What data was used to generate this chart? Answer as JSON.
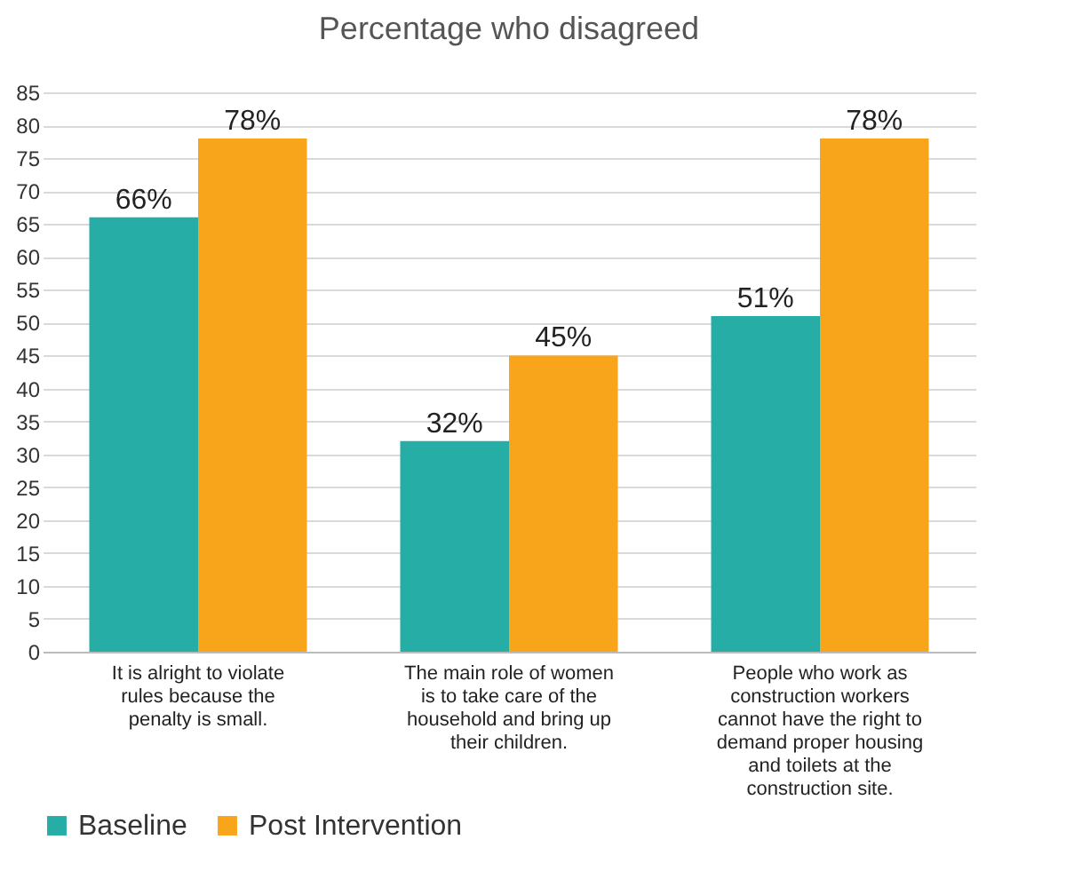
{
  "chart_data": {
    "type": "bar",
    "title": "Percentage who disagreed",
    "categories": [
      "It is alright to violate rules because the penalty is small.",
      "The main role of women is to take care of the household and bring up their children.",
      "People who work as construction workers cannot have the right to demand proper housing and toilets at the construction site."
    ],
    "series": [
      {
        "name": "Baseline",
        "color": "#26ada6",
        "values": [
          66,
          32,
          51
        ],
        "value_labels": [
          "66%",
          "32%",
          "51%"
        ]
      },
      {
        "name": "Post Intervention",
        "color": "#f8a51c",
        "values": [
          78,
          45,
          78
        ],
        "value_labels": [
          "78%",
          "45%",
          "78%"
        ]
      }
    ],
    "ylim": [
      0,
      85
    ],
    "yticks": [
      0,
      5,
      10,
      15,
      20,
      25,
      30,
      35,
      40,
      45,
      50,
      55,
      60,
      65,
      70,
      75,
      80,
      85
    ],
    "grid": "y",
    "legend": "bottom"
  }
}
